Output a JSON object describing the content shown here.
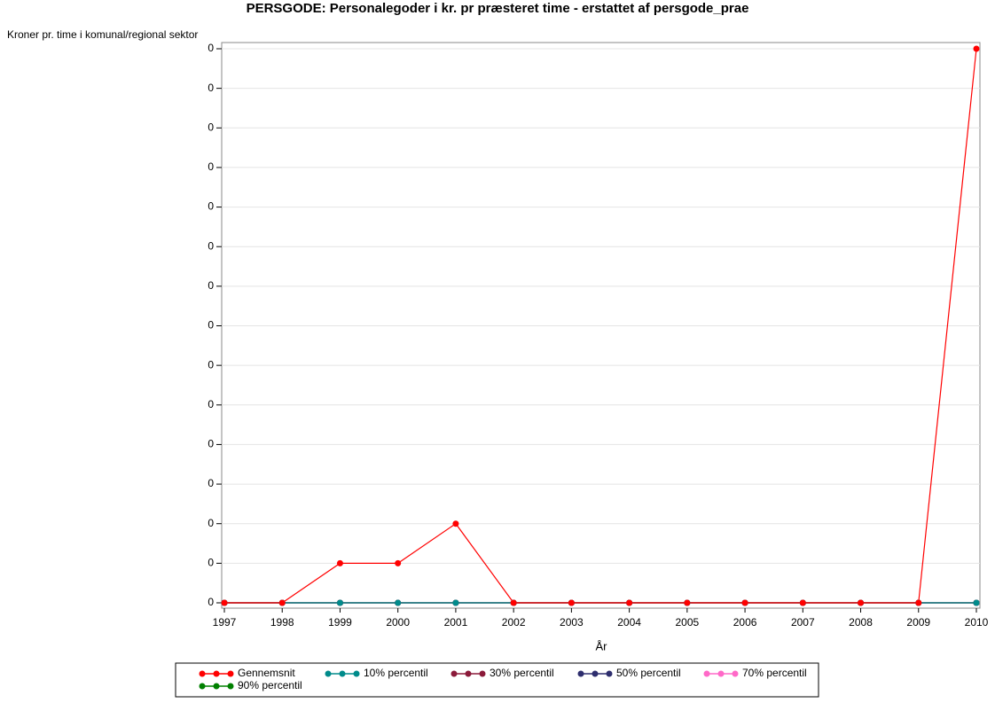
{
  "chart_data": {
    "type": "line",
    "title": "PERSGODE: Personalegoder i kr. pr præsteret time - erstattet af persgode_prae",
    "y_label": "Kroner pr. time i komunal/regional sektor",
    "x_label": "År",
    "x": [
      1997,
      1998,
      1999,
      2000,
      2001,
      2002,
      2003,
      2004,
      2005,
      2006,
      2007,
      2008,
      2009,
      2010
    ],
    "series": [
      {
        "name": "Gennemsnit",
        "color": "#ff0000",
        "values": [
          0,
          0,
          0.01,
          0.01,
          0.02,
          0,
          0,
          0,
          0,
          0,
          0,
          0,
          0,
          0.14
        ]
      },
      {
        "name": "10% percentil",
        "color": "#008b8b",
        "values": [
          0,
          0,
          0,
          0,
          0,
          0,
          0,
          0,
          0,
          0,
          0,
          0,
          0,
          0
        ]
      },
      {
        "name": "30% percentil",
        "color": "#8b1a3a",
        "values": [
          0,
          0,
          0,
          0,
          0,
          0,
          0,
          0,
          0,
          0,
          0,
          0,
          0,
          0
        ]
      },
      {
        "name": "50% percentil",
        "color": "#2e2e6e",
        "values": [
          0,
          0,
          0,
          0,
          0,
          0,
          0,
          0,
          0,
          0,
          0,
          0,
          0,
          0
        ]
      },
      {
        "name": "70% percentil",
        "color": "#ff69c8",
        "values": [
          0,
          0,
          0,
          0,
          0,
          0,
          0,
          0,
          0,
          0,
          0,
          0,
          0,
          0
        ]
      },
      {
        "name": "90% percentil",
        "color": "#008000",
        "values": [
          0,
          0,
          0,
          0,
          0,
          0,
          0,
          0,
          0,
          0,
          0,
          0,
          0,
          0
        ]
      }
    ],
    "xlim": [
      1997,
      2010
    ],
    "xticks": [
      1997,
      1998,
      1999,
      2000,
      2001,
      2002,
      2003,
      2004,
      2005,
      2006,
      2007,
      2008,
      2009,
      2010
    ],
    "ylim": [
      0,
      0.14
    ],
    "yticks": [
      {
        "value": 0,
        "label": "0"
      },
      {
        "value": 0.01,
        "label": "0"
      },
      {
        "value": 0.02,
        "label": "0"
      },
      {
        "value": 0.03,
        "label": "0"
      },
      {
        "value": 0.04,
        "label": "0"
      },
      {
        "value": 0.05,
        "label": "0"
      },
      {
        "value": 0.06,
        "label": "0"
      },
      {
        "value": 0.07,
        "label": "0"
      },
      {
        "value": 0.08,
        "label": "0"
      },
      {
        "value": 0.09,
        "label": "0"
      },
      {
        "value": 0.1,
        "label": "0"
      },
      {
        "value": 0.11,
        "label": "0"
      },
      {
        "value": 0.12,
        "label": "0"
      },
      {
        "value": 0.13,
        "label": "0"
      },
      {
        "value": 0.14,
        "label": "0"
      }
    ],
    "grid": true,
    "legend_position": "bottom"
  }
}
